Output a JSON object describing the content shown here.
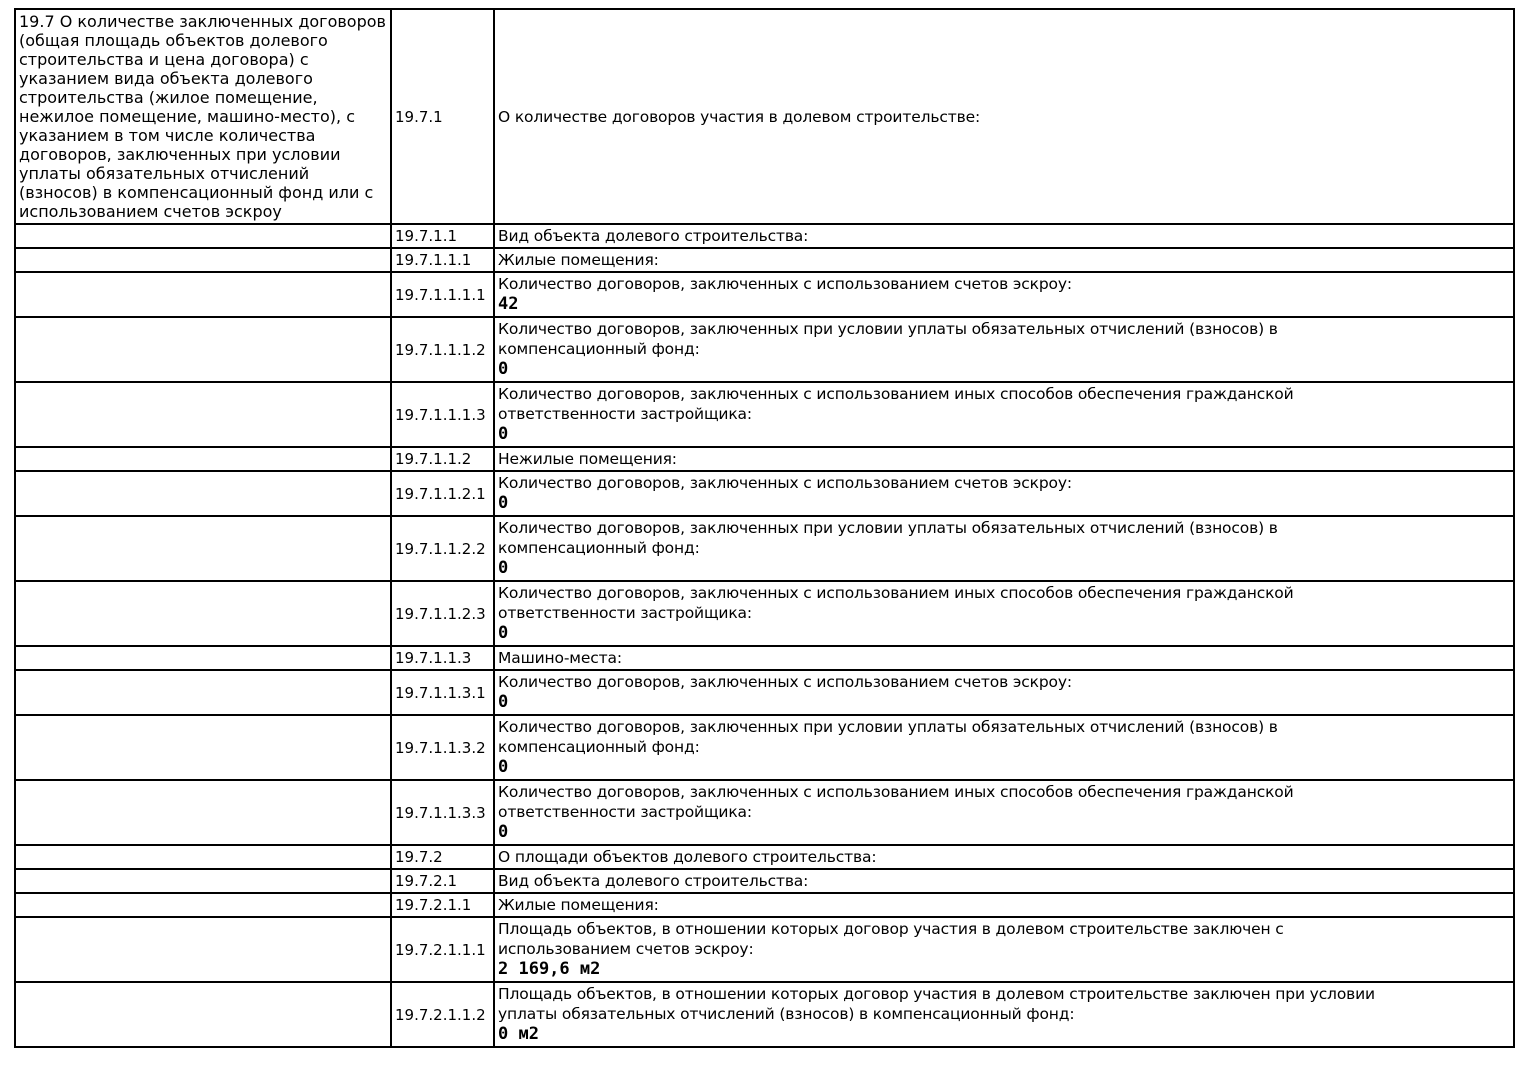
{
  "colors": {
    "background": "#ffffff",
    "border": "#000000",
    "text": "#000000"
  },
  "doc": {
    "section_description": "19.7 О количестве заключенных договоров (общая площадь объектов долевого строительства и цена договора) с указанием вида объекта долевого строительства (жилое помещение, нежилое помещение, машино-место), с указанием в том числе количества договоров, заключенных при условии уплаты обязательных отчислений (взносов) в компенсационный фонд или с использованием счетов эскроу",
    "rows": [
      {
        "code": "19.7.1",
        "label": "О количестве договоров участия в долевом строительстве:",
        "value": ""
      },
      {
        "code": "19.7.1.1",
        "label": "Вид объекта долевого строительства:",
        "value": ""
      },
      {
        "code": "19.7.1.1.1",
        "label": "Жилые помещения:",
        "value": ""
      },
      {
        "code": "19.7.1.1.1.1",
        "label": "Количество договоров, заключенных с использованием счетов эскроу:",
        "value": "42"
      },
      {
        "code": "19.7.1.1.1.2",
        "label": "Количество договоров, заключенных при условии уплаты обязательных отчислений (взносов) в компенсационный фонд:",
        "value": "0"
      },
      {
        "code": "19.7.1.1.1.3",
        "label": "Количество договоров, заключенных с использованием иных способов обеспечения гражданской ответственности застройщика:",
        "value": "0"
      },
      {
        "code": "19.7.1.1.2",
        "label": "Нежилые помещения:",
        "value": ""
      },
      {
        "code": "19.7.1.1.2.1",
        "label": "Количество договоров, заключенных с использованием счетов эскроу:",
        "value": "0"
      },
      {
        "code": "19.7.1.1.2.2",
        "label": "Количество договоров, заключенных при условии уплаты обязательных отчислений (взносов) в компенсационный фонд:",
        "value": "0"
      },
      {
        "code": "19.7.1.1.2.3",
        "label": "Количество договоров, заключенных с использованием иных способов обеспечения гражданской ответственности застройщика:",
        "value": "0"
      },
      {
        "code": "19.7.1.1.3",
        "label": "Машино-места:",
        "value": ""
      },
      {
        "code": "19.7.1.1.3.1",
        "label": "Количество договоров, заключенных с использованием счетов эскроу:",
        "value": "0"
      },
      {
        "code": "19.7.1.1.3.2",
        "label": "Количество договоров, заключенных при условии уплаты обязательных отчислений (взносов) в компенсационный фонд:",
        "value": "0"
      },
      {
        "code": "19.7.1.1.3.3",
        "label": "Количество договоров, заключенных с использованием иных способов обеспечения гражданской ответственности застройщика:",
        "value": "0"
      },
      {
        "code": "19.7.2",
        "label": "О площади объектов долевого строительства:",
        "value": ""
      },
      {
        "code": "19.7.2.1",
        "label": "Вид объекта долевого строительства:",
        "value": ""
      },
      {
        "code": "19.7.2.1.1",
        "label": "Жилые помещения:",
        "value": ""
      },
      {
        "code": "19.7.2.1.1.1",
        "label": "Площадь объектов, в отношении которых договор участия в долевом строительстве заключен с использованием счетов эскроу:",
        "value": "2 169,6 м2"
      },
      {
        "code": "19.7.2.1.1.2",
        "label": "Площадь объектов, в отношении которых договор участия в долевом строительстве заключен при условии уплаты обязательных отчислений (взносов) в компенсационный фонд:",
        "value": "0 м2"
      }
    ]
  }
}
